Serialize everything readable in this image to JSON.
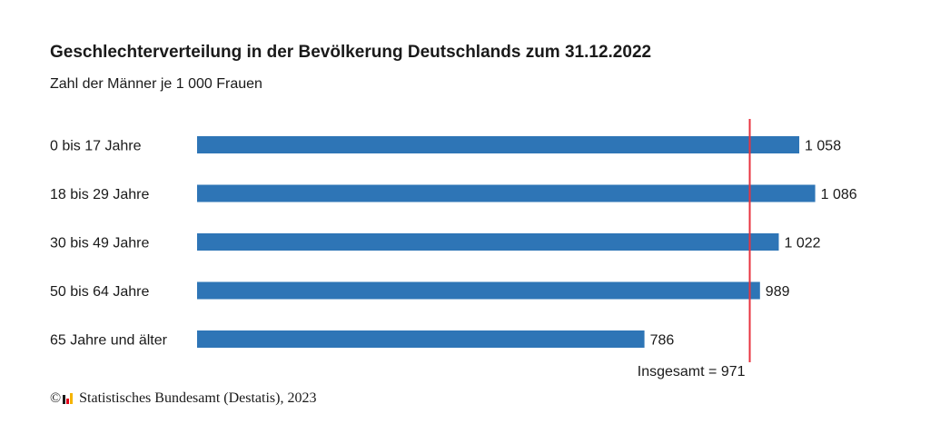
{
  "header": {
    "title": "Geschlechterverteilung in der Bevölkerung Deutschlands zum 31.12.2022",
    "subtitle": "Zahl der Männer je 1 000 Frauen"
  },
  "chart_data": {
    "type": "bar",
    "orientation": "horizontal",
    "categories": [
      "0 bis 17 Jahre",
      "18 bis 29 Jahre",
      "30 bis 49 Jahre",
      "50 bis 64 Jahre",
      "65 Jahre und älter"
    ],
    "values": [
      1058,
      1086,
      1022,
      989,
      786
    ],
    "value_labels": [
      "1 058",
      "1 086",
      "1 022",
      "989",
      "786"
    ],
    "bar_color": "#2e75b6",
    "reference_line": {
      "value": 971,
      "label": "Insgesamt = 971",
      "color": "#e8343f"
    },
    "grid": false,
    "legend": "none"
  },
  "footer": {
    "copyright_symbol": "©",
    "logo_icon": "destatis-logo-icon",
    "source": "Statistisches Bundesamt (Destatis), 2023"
  }
}
